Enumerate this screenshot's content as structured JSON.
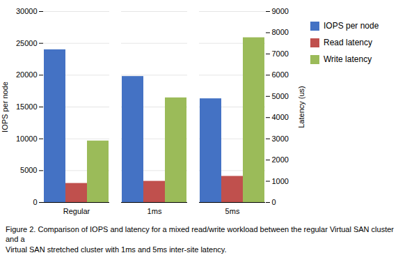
{
  "chart_data": {
    "type": "bar",
    "categories": [
      "Regular",
      "1ms",
      "5ms"
    ],
    "series": [
      {
        "name": "IOPS per node",
        "color": "#4472C4",
        "values": [
          24000,
          19800,
          16300
        ]
      },
      {
        "name": "Read latency",
        "color": "#C0504D",
        "values": [
          900,
          1000,
          1233
        ],
        "axis": "y2"
      },
      {
        "name": "Write latency",
        "color": "#9BBB59",
        "values": [
          2900,
          4933,
          7767
        ],
        "axis": "y2"
      }
    ],
    "ylabel": "IOPS per node",
    "y2label": "Latency (us)",
    "ylim": [
      0,
      30000
    ],
    "yticks": [
      0,
      5000,
      10000,
      15000,
      20000,
      25000,
      30000
    ],
    "y2lim": [
      0,
      9000
    ],
    "y2ticks": [
      0,
      1000,
      2000,
      3000,
      4000,
      5000,
      6000,
      7000,
      8000,
      9000
    ],
    "grid": true,
    "legend": "right",
    "caption": "Figure 2. Comparison of IOPS and latency for a mixed read/write workload between the regular Virtual SAN cluster and a\nVirtual SAN stretched cluster with 1ms and 5ms inter-site latency."
  }
}
